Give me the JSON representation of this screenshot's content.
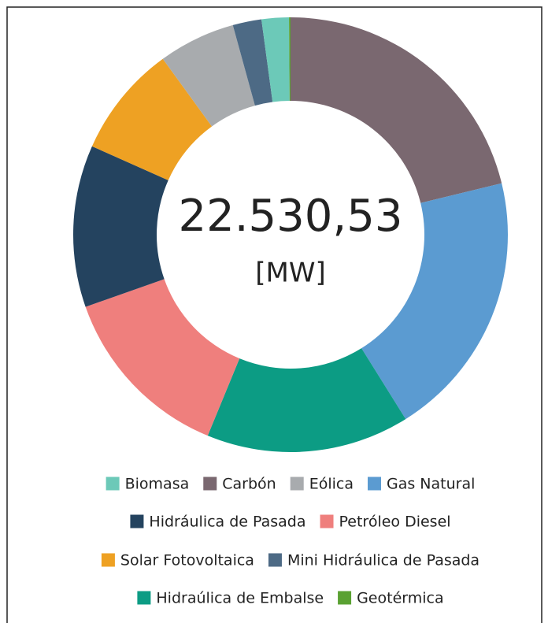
{
  "chart_data": {
    "type": "donut",
    "total": {
      "value": 22530.53,
      "label": "22.530,53"
    },
    "unit": "[MW]",
    "categories": [
      "Biomasa",
      "Carbón",
      "Eólica",
      "Gas Natural",
      "Hidráulica de Pasada",
      "Petróleo Diesel",
      "Solar Fotovoltaica",
      "Mini Hidráulica de Pasada",
      "Hidraúlica de Embalse",
      "Geotérmica"
    ],
    "values": [
      457,
      4776,
      1289,
      4487,
      2716,
      3017,
      1877,
      482,
      3405,
      25
    ],
    "colors": [
      "#6cc9b8",
      "#7a6870",
      "#a8abae",
      "#5b9bd1",
      "#24435f",
      "#ef7f7d",
      "#eea123",
      "#4d6a85",
      "#0c9c84",
      "#5aa132"
    ],
    "slice_order": [
      1,
      3,
      8,
      5,
      4,
      6,
      2,
      7,
      0,
      9
    ]
  }
}
